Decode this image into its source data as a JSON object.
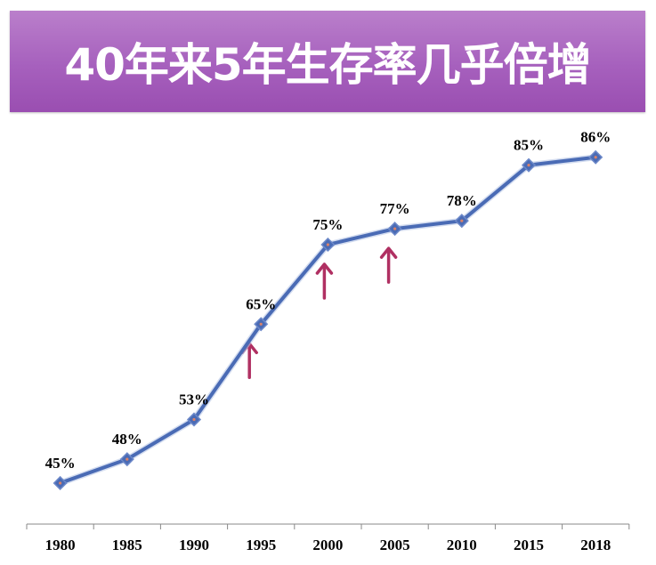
{
  "chart_data": {
    "type": "line",
    "title": "40年来5年生存率几乎倍增",
    "categories": [
      "1980",
      "1985",
      "1990",
      "1995",
      "2000",
      "2005",
      "2010",
      "2015",
      "2018"
    ],
    "values": [
      45,
      48,
      53,
      65,
      75,
      77,
      78,
      85,
      86
    ],
    "data_labels": [
      "45%",
      "48%",
      "53%",
      "65%",
      "75%",
      "77%",
      "78%",
      "85%",
      "86%"
    ],
    "ylim": [
      40,
      90
    ],
    "grid": false,
    "legend": "none",
    "line_color": "#4a6bb5",
    "marker_color": "#4a6bb5",
    "arrow_color": "#b03062",
    "annotations": [
      {
        "type": "up-arrow",
        "category": "1995"
      },
      {
        "type": "up-arrow",
        "category": "2000"
      },
      {
        "type": "up-arrow",
        "category": "2005"
      }
    ]
  }
}
